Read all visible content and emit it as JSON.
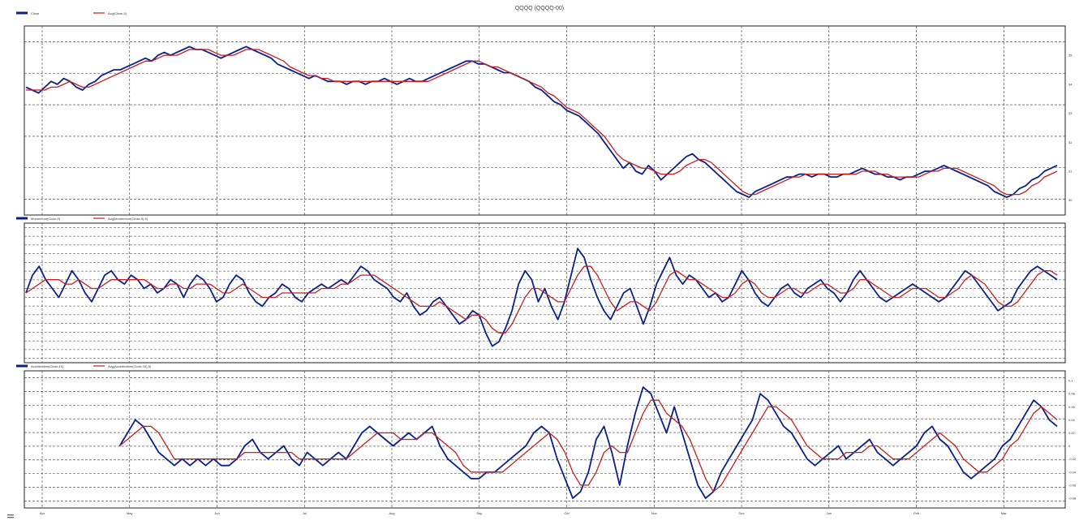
{
  "title": "QQQQ (QQQQ-00)",
  "chart_data": [
    {
      "type": "line",
      "panel": "price",
      "legend": [
        "Close",
        "Avg(Close,5)"
      ],
      "colors": {
        "series1": "#0b1f8c",
        "series2": "#c81e1e"
      },
      "y_ticks": [
        "35",
        "34",
        "33",
        "32",
        "31",
        "30"
      ],
      "ylim": [
        29.6,
        35.9
      ],
      "grid": true,
      "series": [
        {
          "name": "Close",
          "values": [
            33.9,
            33.8,
            33.7,
            33.9,
            34.1,
            34.0,
            34.2,
            34.1,
            33.9,
            33.8,
            34.0,
            34.1,
            34.3,
            34.4,
            34.5,
            34.5,
            34.6,
            34.7,
            34.8,
            34.9,
            34.8,
            35.0,
            35.1,
            35.0,
            35.1,
            35.2,
            35.3,
            35.2,
            35.2,
            35.1,
            35.0,
            34.9,
            35.0,
            35.1,
            35.2,
            35.3,
            35.2,
            35.1,
            35.0,
            34.9,
            34.7,
            34.6,
            34.5,
            34.4,
            34.3,
            34.2,
            34.3,
            34.2,
            34.1,
            34.1,
            34.1,
            34.0,
            34.1,
            34.1,
            34.0,
            34.1,
            34.1,
            34.2,
            34.1,
            34.0,
            34.1,
            34.2,
            34.1,
            34.1,
            34.2,
            34.3,
            34.4,
            34.5,
            34.6,
            34.7,
            34.8,
            34.8,
            34.7,
            34.7,
            34.6,
            34.5,
            34.4,
            34.4,
            34.3,
            34.2,
            34.1,
            33.9,
            33.8,
            33.6,
            33.4,
            33.3,
            33.1,
            33.0,
            32.9,
            32.7,
            32.5,
            32.3,
            32.0,
            31.7,
            31.4,
            31.1,
            31.3,
            31.0,
            30.9,
            31.2,
            31.0,
            30.7,
            30.9,
            31.1,
            31.3,
            31.5,
            31.6,
            31.4,
            31.3,
            31.1,
            30.9,
            30.7,
            30.5,
            30.3,
            30.2,
            30.1,
            30.3,
            30.4,
            30.5,
            30.6,
            30.7,
            30.8,
            30.8,
            30.9,
            30.9,
            30.8,
            30.9,
            30.9,
            30.8,
            30.8,
            30.9,
            30.9,
            31.0,
            31.1,
            31.0,
            30.9,
            30.9,
            30.8,
            30.8,
            30.7,
            30.8,
            30.8,
            30.9,
            31.0,
            31.0,
            31.1,
            31.2,
            31.1,
            31.0,
            30.9,
            30.8,
            30.7,
            30.6,
            30.5,
            30.3,
            30.2,
            30.1,
            30.2,
            30.4,
            30.5,
            30.7,
            30.8,
            31.0,
            31.1,
            31.2
          ]
        },
        {
          "name": "Avg(Close,5)",
          "values": [
            33.8,
            33.8,
            33.8,
            33.8,
            33.9,
            33.9,
            34.0,
            34.1,
            34.0,
            33.9,
            33.9,
            34.0,
            34.1,
            34.2,
            34.3,
            34.4,
            34.5,
            34.6,
            34.7,
            34.8,
            34.8,
            34.9,
            35.0,
            35.0,
            35.0,
            35.1,
            35.2,
            35.2,
            35.2,
            35.2,
            35.1,
            35.0,
            35.0,
            35.0,
            35.1,
            35.2,
            35.2,
            35.2,
            35.1,
            35.0,
            34.9,
            34.8,
            34.6,
            34.5,
            34.4,
            34.3,
            34.3,
            34.2,
            34.2,
            34.1,
            34.1,
            34.1,
            34.1,
            34.1,
            34.1,
            34.1,
            34.1,
            34.1,
            34.1,
            34.1,
            34.1,
            34.1,
            34.1,
            34.1,
            34.1,
            34.2,
            34.3,
            34.4,
            34.5,
            34.6,
            34.7,
            34.8,
            34.8,
            34.7,
            34.6,
            34.6,
            34.5,
            34.4,
            34.3,
            34.2,
            34.1,
            34.0,
            33.9,
            33.7,
            33.6,
            33.4,
            33.2,
            33.1,
            33.0,
            32.8,
            32.6,
            32.4,
            32.2,
            31.9,
            31.6,
            31.4,
            31.3,
            31.2,
            31.1,
            31.1,
            31.0,
            30.9,
            30.9,
            30.9,
            31.0,
            31.2,
            31.3,
            31.4,
            31.4,
            31.3,
            31.1,
            30.9,
            30.7,
            30.5,
            30.3,
            30.2,
            30.2,
            30.3,
            30.4,
            30.5,
            30.6,
            30.7,
            30.8,
            30.8,
            30.9,
            30.9,
            30.9,
            30.9,
            30.9,
            30.9,
            30.9,
            30.9,
            30.9,
            31.0,
            31.0,
            31.0,
            30.9,
            30.9,
            30.8,
            30.8,
            30.8,
            30.8,
            30.8,
            30.9,
            31.0,
            31.0,
            31.1,
            31.1,
            31.1,
            31.0,
            30.9,
            30.8,
            30.7,
            30.6,
            30.5,
            30.3,
            30.2,
            30.2,
            30.2,
            30.3,
            30.5,
            30.6,
            30.8,
            30.9,
            31.0
          ]
        }
      ]
    },
    {
      "type": "line",
      "panel": "momentum",
      "legend": [
        "Momentum(Close,5)",
        "Avg(Momentum(Close,5),5)"
      ],
      "colors": {
        "series1": "#0b1f8c",
        "series2": "#c81e1e"
      },
      "ylim": [
        -1.5,
        1.5
      ],
      "grid": true,
      "series": [
        {
          "name": "Momentum(Close,5)",
          "values": [
            0.0,
            0.4,
            0.6,
            0.3,
            0.1,
            -0.1,
            0.2,
            0.5,
            0.3,
            0.0,
            -0.2,
            0.1,
            0.4,
            0.5,
            0.3,
            0.2,
            0.4,
            0.3,
            0.1,
            0.2,
            0.0,
            0.1,
            0.3,
            0.2,
            -0.1,
            0.2,
            0.4,
            0.3,
            0.1,
            -0.2,
            -0.1,
            0.2,
            0.4,
            0.3,
            0.0,
            -0.2,
            -0.3,
            -0.1,
            0.0,
            0.2,
            0.1,
            -0.1,
            -0.2,
            0.0,
            0.1,
            0.2,
            0.1,
            0.2,
            0.3,
            0.2,
            0.4,
            0.6,
            0.5,
            0.3,
            0.2,
            0.1,
            -0.1,
            -0.2,
            0.0,
            -0.3,
            -0.5,
            -0.4,
            -0.2,
            -0.1,
            -0.3,
            -0.5,
            -0.7,
            -0.6,
            -0.4,
            -0.5,
            -0.9,
            -1.2,
            -1.1,
            -0.8,
            -0.4,
            0.2,
            0.5,
            0.3,
            -0.2,
            0.1,
            -0.3,
            -0.6,
            -0.2,
            0.4,
            1.0,
            0.8,
            0.3,
            -0.1,
            -0.4,
            -0.6,
            -0.3,
            0.0,
            0.1,
            -0.3,
            -0.7,
            -0.3,
            0.2,
            0.5,
            0.8,
            0.4,
            0.2,
            0.4,
            0.3,
            0.1,
            -0.1,
            0.0,
            -0.2,
            -0.1,
            0.2,
            0.5,
            0.3,
            0.0,
            -0.2,
            -0.3,
            -0.1,
            0.1,
            0.2,
            0.0,
            -0.1,
            0.1,
            0.2,
            0.3,
            0.1,
            0.0,
            -0.2,
            0.0,
            0.3,
            0.5,
            0.3,
            0.1,
            -0.1,
            -0.2,
            -0.1,
            0.0,
            0.1,
            0.2,
            0.1,
            0.0,
            -0.1,
            -0.2,
            -0.1,
            0.1,
            0.3,
            0.5,
            0.4,
            0.2,
            0.0,
            -0.2,
            -0.4,
            -0.3,
            -0.2,
            0.1,
            0.3,
            0.5,
            0.6,
            0.5,
            0.4,
            0.3
          ]
        },
        {
          "name": "Avg(Momentum(Close,5),5)",
          "values": [
            0.0,
            0.1,
            0.2,
            0.3,
            0.3,
            0.3,
            0.2,
            0.2,
            0.3,
            0.2,
            0.1,
            0.1,
            0.2,
            0.3,
            0.3,
            0.3,
            0.3,
            0.3,
            0.3,
            0.2,
            0.1,
            0.1,
            0.2,
            0.2,
            0.1,
            0.1,
            0.2,
            0.2,
            0.2,
            0.1,
            0.0,
            0.0,
            0.1,
            0.2,
            0.1,
            0.0,
            -0.1,
            -0.1,
            -0.1,
            0.0,
            0.0,
            0.0,
            0.0,
            0.0,
            0.0,
            0.1,
            0.1,
            0.1,
            0.2,
            0.2,
            0.3,
            0.4,
            0.4,
            0.4,
            0.3,
            0.2,
            0.1,
            0.0,
            -0.1,
            -0.2,
            -0.3,
            -0.3,
            -0.3,
            -0.2,
            -0.3,
            -0.4,
            -0.5,
            -0.6,
            -0.5,
            -0.5,
            -0.6,
            -0.8,
            -0.9,
            -0.9,
            -0.7,
            -0.4,
            -0.1,
            0.1,
            0.1,
            0.0,
            -0.1,
            -0.2,
            -0.2,
            0.1,
            0.4,
            0.6,
            0.6,
            0.4,
            0.1,
            -0.2,
            -0.4,
            -0.3,
            -0.2,
            -0.2,
            -0.3,
            -0.4,
            -0.2,
            0.1,
            0.4,
            0.5,
            0.4,
            0.3,
            0.3,
            0.2,
            0.1,
            0.0,
            -0.1,
            -0.1,
            0.0,
            0.2,
            0.3,
            0.2,
            0.0,
            -0.1,
            -0.1,
            0.0,
            0.1,
            0.1,
            0.0,
            0.0,
            0.1,
            0.2,
            0.2,
            0.1,
            0.0,
            0.0,
            0.1,
            0.3,
            0.3,
            0.2,
            0.1,
            0.0,
            -0.1,
            -0.1,
            0.0,
            0.1,
            0.1,
            0.1,
            0.0,
            -0.1,
            -0.1,
            0.0,
            0.1,
            0.3,
            0.4,
            0.3,
            0.2,
            0.0,
            -0.2,
            -0.3,
            -0.3,
            -0.2,
            0.0,
            0.2,
            0.4,
            0.5,
            0.5,
            0.4
          ]
        }
      ]
    },
    {
      "type": "line",
      "panel": "acceleration",
      "legend": [
        "Acceleration(Close,10)",
        "Avg(Acceleration(Close,10),5)"
      ],
      "colors": {
        "series1": "#0b1f8c",
        "series2": "#c81e1e"
      },
      "y_ticks": [
        "0.1",
        "0.08",
        "0.06",
        "0.04",
        "0.02",
        "0",
        "-0.02",
        "-0.04",
        "-0.06",
        "-0.08"
      ],
      "ylim": [
        -0.09,
        0.11
      ],
      "grid": true,
      "series": [
        {
          "name": "Acceleration(Close,10)",
          "values": [
            null,
            null,
            null,
            null,
            null,
            null,
            null,
            null,
            null,
            null,
            null,
            null,
            0.0,
            0.02,
            0.04,
            0.03,
            0.01,
            -0.01,
            -0.02,
            -0.03,
            -0.02,
            -0.03,
            -0.02,
            -0.03,
            -0.02,
            -0.03,
            -0.03,
            -0.02,
            0.0,
            0.01,
            -0.01,
            -0.02,
            -0.01,
            0.0,
            -0.02,
            -0.03,
            -0.01,
            -0.02,
            -0.03,
            -0.02,
            -0.01,
            -0.02,
            0.0,
            0.02,
            0.03,
            0.02,
            0.01,
            0.0,
            0.01,
            0.02,
            0.01,
            0.02,
            0.03,
            0.0,
            -0.02,
            -0.03,
            -0.04,
            -0.05,
            -0.05,
            -0.04,
            -0.04,
            -0.03,
            -0.02,
            -0.01,
            0.0,
            0.02,
            0.03,
            0.02,
            -0.02,
            -0.05,
            -0.08,
            -0.07,
            -0.04,
            0.01,
            0.03,
            -0.01,
            -0.06,
            0.0,
            0.05,
            0.09,
            0.08,
            0.05,
            0.02,
            0.06,
            0.02,
            -0.02,
            -0.06,
            -0.08,
            -0.07,
            -0.04,
            -0.02,
            0.0,
            0.02,
            0.04,
            0.08,
            0.07,
            0.05,
            0.03,
            0.02,
            0.0,
            -0.02,
            -0.03,
            -0.02,
            -0.01,
            0.0,
            -0.02,
            -0.01,
            0.0,
            0.01,
            -0.01,
            -0.02,
            -0.03,
            -0.02,
            -0.01,
            0.0,
            0.02,
            0.03,
            0.01,
            0.0,
            -0.02,
            -0.04,
            -0.05,
            -0.04,
            -0.03,
            -0.02,
            0.0,
            0.01,
            0.03,
            0.05,
            0.07,
            0.06,
            0.04,
            0.03
          ]
        },
        {
          "name": "Avg(Acceleration(Close,10),5)",
          "values": [
            null,
            null,
            null,
            null,
            null,
            null,
            null,
            null,
            null,
            null,
            null,
            null,
            0.0,
            0.01,
            0.02,
            0.03,
            0.03,
            0.02,
            0.0,
            -0.02,
            -0.02,
            -0.02,
            -0.02,
            -0.02,
            -0.02,
            -0.02,
            -0.02,
            -0.02,
            -0.01,
            -0.01,
            -0.01,
            -0.01,
            -0.01,
            -0.01,
            -0.01,
            -0.02,
            -0.02,
            -0.02,
            -0.02,
            -0.02,
            -0.02,
            -0.02,
            -0.01,
            0.0,
            0.01,
            0.02,
            0.02,
            0.02,
            0.01,
            0.01,
            0.01,
            0.02,
            0.02,
            0.01,
            0.0,
            -0.01,
            -0.03,
            -0.04,
            -0.04,
            -0.04,
            -0.04,
            -0.04,
            -0.03,
            -0.02,
            -0.01,
            0.0,
            0.01,
            0.02,
            0.01,
            -0.01,
            -0.04,
            -0.06,
            -0.06,
            -0.04,
            -0.01,
            0.0,
            -0.01,
            -0.01,
            0.02,
            0.05,
            0.07,
            0.07,
            0.05,
            0.04,
            0.03,
            0.01,
            -0.02,
            -0.05,
            -0.07,
            -0.06,
            -0.04,
            -0.02,
            0.0,
            0.02,
            0.04,
            0.06,
            0.06,
            0.05,
            0.04,
            0.02,
            0.0,
            -0.01,
            -0.02,
            -0.02,
            -0.02,
            -0.01,
            -0.01,
            -0.01,
            0.0,
            0.0,
            -0.01,
            -0.02,
            -0.02,
            -0.02,
            -0.01,
            0.0,
            0.01,
            0.02,
            0.01,
            0.0,
            -0.02,
            -0.03,
            -0.04,
            -0.04,
            -0.03,
            -0.02,
            0.0,
            0.01,
            0.03,
            0.05,
            0.06,
            0.05,
            0.04
          ]
        }
      ]
    }
  ],
  "x_ticks": [
    "Apr",
    "May",
    "Jun",
    "Jul",
    "Aug",
    "Sep",
    "Oct",
    "Nov",
    "Dec",
    "Jan",
    "Feb",
    "Mar"
  ]
}
